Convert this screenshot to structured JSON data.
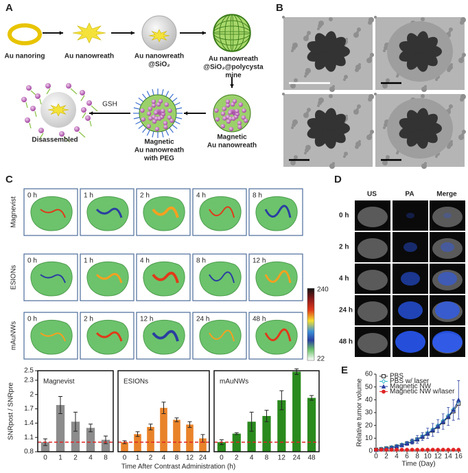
{
  "panel_labels": [
    "A",
    "B",
    "C",
    "D",
    "E"
  ],
  "scheme": {
    "steps": [
      [
        "Au nanoring"
      ],
      [
        "Au nanowreath"
      ],
      [
        "Au nanowreath",
        "@SiO₂"
      ],
      [
        "Au nanowreath",
        "@SiO₂@polycysta",
        "mine"
      ],
      [
        "Magnetic",
        "Au nanowreath"
      ],
      [
        "Magnetic",
        "Au nanowreath",
        "with PEG"
      ],
      [
        "Disassembled"
      ]
    ],
    "reagent": "GSH"
  },
  "mri": {
    "rows": [
      {
        "name": "Magnevist",
        "times": [
          "0 h",
          "1 h",
          "2 h",
          "4 h",
          "8 h"
        ]
      },
      {
        "name": "ESIONs",
        "times": [
          "0 h",
          "1 h",
          "4 h",
          "8 h",
          "12 h"
        ]
      },
      {
        "name": "mAuNWs",
        "times": [
          "0 h",
          "2 h",
          "12 h",
          "24 h",
          "48 h"
        ]
      }
    ],
    "colorbar": {
      "max": 240,
      "min": 22
    }
  },
  "photoacoustic": {
    "columns": [
      "US",
      "PA",
      "Merge"
    ],
    "rows": [
      "0 h",
      "2 h",
      "4 h",
      "24 h",
      "48 h"
    ]
  },
  "chart_data": [
    {
      "type": "bar",
      "ylabel": "SNRpost / SNRpre",
      "xlabel": "Time After Contrast Administration (h)",
      "ylim": [
        0.8,
        2.5
      ],
      "yticks": [
        0.8,
        1.1,
        1.4,
        1.7,
        2,
        2.3,
        2.5
      ],
      "reference_line": {
        "value": 1,
        "color": "#e02424"
      },
      "groups": [
        {
          "title": "Magnevist",
          "color": "#8c8c8c",
          "categories": [
            "0",
            "1",
            "2",
            "4",
            "8"
          ],
          "values": [
            1.0,
            1.78,
            1.43,
            1.3,
            1.05
          ],
          "errors": [
            0.07,
            0.18,
            0.2,
            0.08,
            0.08
          ]
        },
        {
          "title": "ESIONs",
          "color": "#e9832a",
          "categories": [
            "0",
            "1",
            "2",
            "4",
            "8",
            "12",
            "24"
          ],
          "values": [
            1.0,
            1.17,
            1.32,
            1.72,
            1.47,
            1.37,
            1.08
          ],
          "errors": [
            0.03,
            0.05,
            0.06,
            0.12,
            0.04,
            0.06,
            0.08
          ]
        },
        {
          "title": "mAuNWs",
          "color": "#2a8a1e",
          "categories": [
            "0",
            "2",
            "4",
            "8",
            "12",
            "24",
            "48"
          ],
          "values": [
            1.0,
            1.18,
            1.43,
            1.55,
            1.88,
            2.48,
            1.93
          ],
          "errors": [
            0.05,
            0.02,
            0.2,
            0.12,
            0.2,
            0.06,
            0.05
          ]
        }
      ]
    },
    {
      "type": "line",
      "xlabel": "Time (Day)",
      "ylabel": "Relative tumor volume",
      "x": [
        0,
        1,
        2,
        3,
        4,
        5,
        6,
        7,
        8,
        9,
        10,
        11,
        12,
        13,
        14,
        15,
        16
      ],
      "xlim": [
        0,
        16.5
      ],
      "xticks": [
        0,
        2,
        4,
        6,
        8,
        10,
        12,
        14,
        16
      ],
      "ylim": [
        0,
        60
      ],
      "yticks": [
        0,
        10,
        20,
        30,
        40,
        50,
        60
      ],
      "legend": "upper-left",
      "series": [
        {
          "name": "PBS",
          "color": "#222222",
          "marker": "square",
          "values": [
            1,
            1.4,
            2,
            2.6,
            3.5,
            4.5,
            5.8,
            7.3,
            9,
            11,
            13.5,
            16,
            19,
            22.5,
            26.5,
            31,
            37
          ]
        },
        {
          "name": "PBS w/ laser",
          "color": "#2bb5c9",
          "marker": "diamond",
          "values": [
            1,
            1.5,
            2.1,
            2.8,
            3.7,
            4.8,
            6,
            7.5,
            9.3,
            11.5,
            14,
            16.8,
            19.8,
            23.5,
            27.5,
            32.5,
            39
          ]
        },
        {
          "name": "Magnetic NW",
          "color": "#2a3fa0",
          "marker": "triangle",
          "values": [
            1,
            1.4,
            2,
            2.7,
            3.6,
            4.6,
            5.9,
            7.4,
            9.2,
            11.3,
            13.8,
            16.5,
            19.5,
            23,
            27,
            32,
            40
          ],
          "errors": [
            0.1,
            0.3,
            0.5,
            0.6,
            1,
            1,
            1.5,
            2,
            3,
            3,
            4,
            5,
            5,
            6,
            7,
            8,
            15
          ]
        },
        {
          "name": "Magnetic NW w/laser",
          "color": "#e02424",
          "marker": "circle",
          "values": [
            1,
            1,
            1,
            1,
            1,
            1,
            1,
            1,
            1,
            1,
            1,
            1,
            1,
            1,
            1,
            1,
            1
          ]
        }
      ]
    }
  ]
}
